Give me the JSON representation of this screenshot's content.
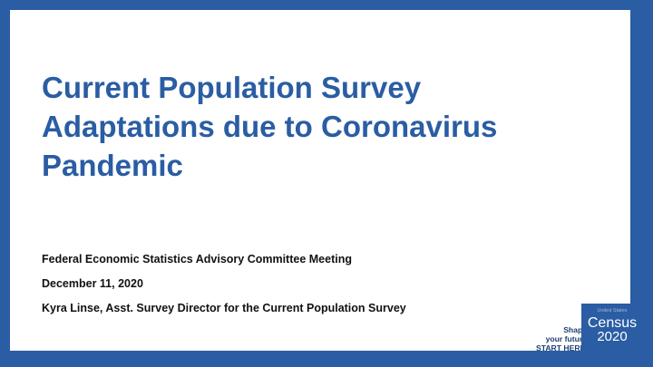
{
  "slide": {
    "title_lines": [
      "Current Population Survey",
      "Adaptations due to Coronavirus",
      "Pandemic"
    ],
    "meeting": "Federal Economic Statistics Advisory Committee Meeting",
    "date": "December 11, 2020",
    "presenter": "Kyra Linse, Asst. Survey Director for the Current Population Survey"
  },
  "branding": {
    "tagline_lines": [
      "Shape",
      "your future",
      "START HERE >"
    ],
    "logo_small": "United States",
    "logo_word": "Census",
    "logo_year": "2020"
  },
  "colors": {
    "frame": "#2a5da3",
    "title": "#2a5da3",
    "body_text": "#111111"
  }
}
